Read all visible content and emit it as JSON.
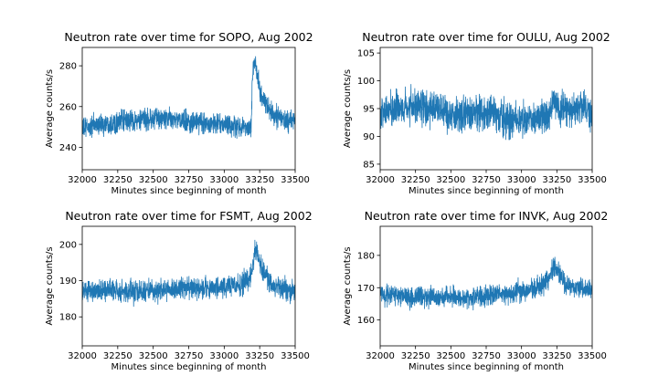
{
  "chart_data": [
    {
      "type": "line",
      "station": "SOPO",
      "title": "Neutron rate over time for SOPO, Aug 2002",
      "xlabel": "Minutes since beginning of month",
      "ylabel": "Average counts/s",
      "xlim": [
        32000,
        33500
      ],
      "ylim": [
        229,
        289
      ],
      "xticks": [
        32000,
        32250,
        32500,
        32750,
        33000,
        33250,
        33500
      ],
      "yticks": [
        240,
        260,
        280
      ],
      "color": "#1f77b4",
      "grid": false,
      "x": [
        32000,
        32100,
        32200,
        32300,
        32400,
        32500,
        32600,
        32700,
        32800,
        32900,
        33000,
        33100,
        33150,
        33190,
        33200,
        33215,
        33230,
        33260,
        33300,
        33350,
        33400,
        33450,
        33500
      ],
      "y": [
        249,
        251,
        252,
        253,
        253,
        254,
        254,
        253,
        252,
        252,
        251,
        250,
        250,
        251,
        276,
        283,
        276,
        266,
        260,
        256,
        254,
        253,
        253
      ],
      "noise": 4.5
    },
    {
      "type": "line",
      "station": "OULU",
      "title": "Neutron rate over time for OULU, Aug 2002",
      "xlabel": "Minutes since beginning of month",
      "ylabel": "Average counts/s",
      "xlim": [
        32000,
        33500
      ],
      "ylim": [
        84,
        106
      ],
      "xticks": [
        32000,
        32250,
        32500,
        32750,
        33000,
        33250,
        33500
      ],
      "yticks": [
        85,
        90,
        95,
        100,
        105
      ],
      "color": "#1f77b4",
      "grid": false,
      "x": [
        32000,
        32100,
        32200,
        32300,
        32400,
        32500,
        32600,
        32700,
        32800,
        32900,
        33000,
        33100,
        33200,
        33230,
        33270,
        33350,
        33450,
        33500
      ],
      "y": [
        94,
        95,
        95,
        95,
        95,
        94,
        94,
        94,
        94,
        93,
        93,
        93,
        94,
        97,
        95,
        95,
        95,
        94
      ],
      "noise": 2.6
    },
    {
      "type": "line",
      "station": "FSMT",
      "title": "Neutron rate over time for FSMT, Aug 2002",
      "xlabel": "Minutes since beginning of month",
      "ylabel": "Average counts/s",
      "xlim": [
        32000,
        33500
      ],
      "ylim": [
        172,
        205
      ],
      "xticks": [
        32000,
        32250,
        32500,
        32750,
        33000,
        33250,
        33500
      ],
      "yticks": [
        180,
        190,
        200
      ],
      "color": "#1f77b4",
      "grid": false,
      "x": [
        32000,
        32100,
        32200,
        32300,
        32400,
        32500,
        32600,
        32700,
        32800,
        32900,
        33000,
        33100,
        33170,
        33200,
        33215,
        33240,
        33280,
        33330,
        33400,
        33500
      ],
      "y": [
        187,
        187,
        187,
        187,
        187,
        187,
        187,
        188,
        188,
        188,
        188,
        189,
        190,
        193,
        199,
        196,
        192,
        189,
        188,
        187
      ],
      "noise": 2.6
    },
    {
      "type": "line",
      "station": "INVK",
      "title": "Neutron rate over time for INVK, Aug 2002",
      "xlabel": "Minutes since beginning of month",
      "ylabel": "Average counts/s",
      "xlim": [
        32000,
        33500
      ],
      "ylim": [
        152,
        189
      ],
      "xticks": [
        32000,
        32250,
        32500,
        32750,
        33000,
        33250,
        33500
      ],
      "yticks": [
        160,
        170,
        180
      ],
      "color": "#1f77b4",
      "grid": false,
      "x": [
        32000,
        32100,
        32200,
        32300,
        32400,
        32500,
        32600,
        32700,
        32800,
        32900,
        33000,
        33100,
        33150,
        33200,
        33230,
        33260,
        33300,
        33350,
        33400,
        33500
      ],
      "y": [
        168,
        168,
        167,
        167,
        167,
        167,
        167,
        167,
        168,
        168,
        169,
        170,
        171,
        173,
        177,
        175,
        172,
        170,
        170,
        169
      ],
      "noise": 2.7
    }
  ]
}
